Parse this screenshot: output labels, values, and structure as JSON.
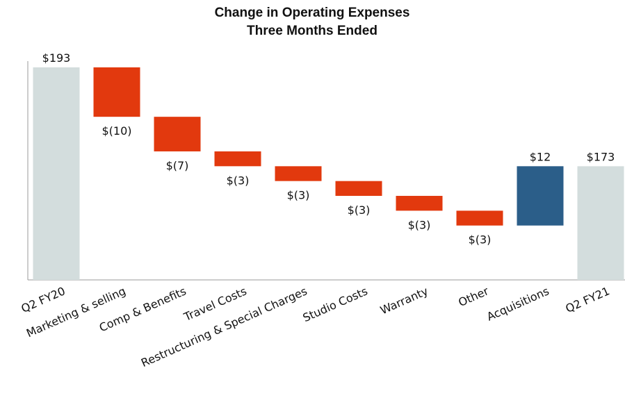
{
  "chart_data": {
    "type": "waterfall",
    "title": "Change in Operating Expenses",
    "subtitle": "Three Months Ended",
    "categories": [
      "Q2 FY20",
      "Marketing & selling",
      "Comp & Benefits",
      "Travel Costs",
      "Restructuring & Special Charges",
      "Studio Costs",
      "Warranty",
      "Other",
      "Acquisitions",
      "Q2 FY21"
    ],
    "values": [
      193,
      -10,
      -7,
      -3,
      -3,
      -3,
      -3,
      -3,
      12,
      173
    ],
    "value_labels": [
      "$193",
      "$(10)",
      "$(7)",
      "$(3)",
      "$(3)",
      "$(3)",
      "$(3)",
      "$(3)",
      "$12",
      "$173"
    ],
    "measures": [
      "total",
      "relative",
      "relative",
      "relative",
      "relative",
      "relative",
      "relative",
      "relative",
      "relative",
      "total"
    ],
    "colors": {
      "total": "#d3dddd",
      "decrease": "#e2390e",
      "increase": "#2b5e89"
    },
    "ylim": [
      150,
      193
    ]
  }
}
